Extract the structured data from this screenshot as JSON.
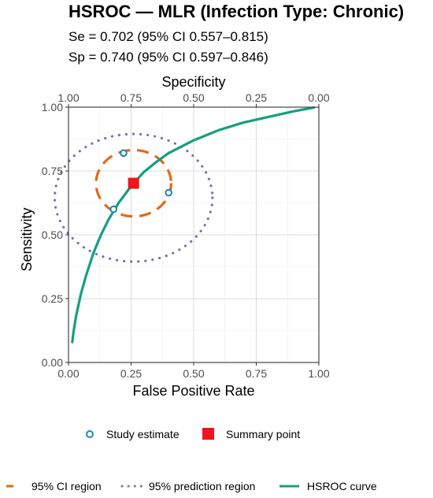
{
  "chart_data": {
    "type": "scatter",
    "title": "HSROC — MLR (Infection Type: Chronic)",
    "subtitle_lines": [
      "Se = 0.702 (95% CI 0.557–0.815)",
      "Sp = 0.740 (95% CI 0.597–0.846)"
    ],
    "xlabel": "False Positive Rate",
    "ylabel": "Sensitivity",
    "top_xlabel": "Specificity",
    "xlim": [
      0,
      1
    ],
    "ylim": [
      0,
      1
    ],
    "x_ticks": [
      0,
      0.25,
      0.5,
      0.75,
      1
    ],
    "x_tick_labels": [
      "0.00",
      "0.25",
      "0.50",
      "0.75",
      "1.00"
    ],
    "y_ticks": [
      0,
      0.25,
      0.5,
      0.75,
      1
    ],
    "y_tick_labels": [
      "0.00",
      "0.25",
      "0.50",
      "0.75",
      "1.00"
    ],
    "top_x_tick_labels": [
      "1.00",
      "0.75",
      "0.50",
      "0.25",
      "0.00"
    ],
    "grid": true,
    "study_estimates": {
      "name": "Study estimate",
      "color": "#1a86b8",
      "points": [
        {
          "x": 0.22,
          "y": 0.82
        },
        {
          "x": 0.4,
          "y": 0.665
        },
        {
          "x": 0.18,
          "y": 0.6
        }
      ]
    },
    "summary_point": {
      "name": "Summary point",
      "color": "#f0141e",
      "x": 0.26,
      "y": 0.702
    },
    "ci_region": {
      "name": "95% CI region",
      "color": "#e06a1c",
      "center": [
        0.26,
        0.702
      ],
      "x_radius": 0.15,
      "y_radius": 0.13
    },
    "prediction_region": {
      "name": "95% prediction region",
      "color": "#7b6fb5",
      "center": [
        0.26,
        0.645
      ],
      "x_radius": 0.315,
      "y_radius": 0.25
    },
    "hsroc_curve": {
      "name": "HSROC curve",
      "color": "#14a07e",
      "x": [
        0.015,
        0.02,
        0.03,
        0.05,
        0.07,
        0.1,
        0.13,
        0.16,
        0.2,
        0.25,
        0.3,
        0.35,
        0.4,
        0.5,
        0.6,
        0.7,
        0.8,
        0.9,
        0.98
      ],
      "y": [
        0.08,
        0.12,
        0.18,
        0.27,
        0.34,
        0.43,
        0.5,
        0.56,
        0.625,
        0.69,
        0.745,
        0.785,
        0.82,
        0.87,
        0.91,
        0.94,
        0.962,
        0.984,
        0.998
      ]
    },
    "legend_position": "bottom"
  }
}
